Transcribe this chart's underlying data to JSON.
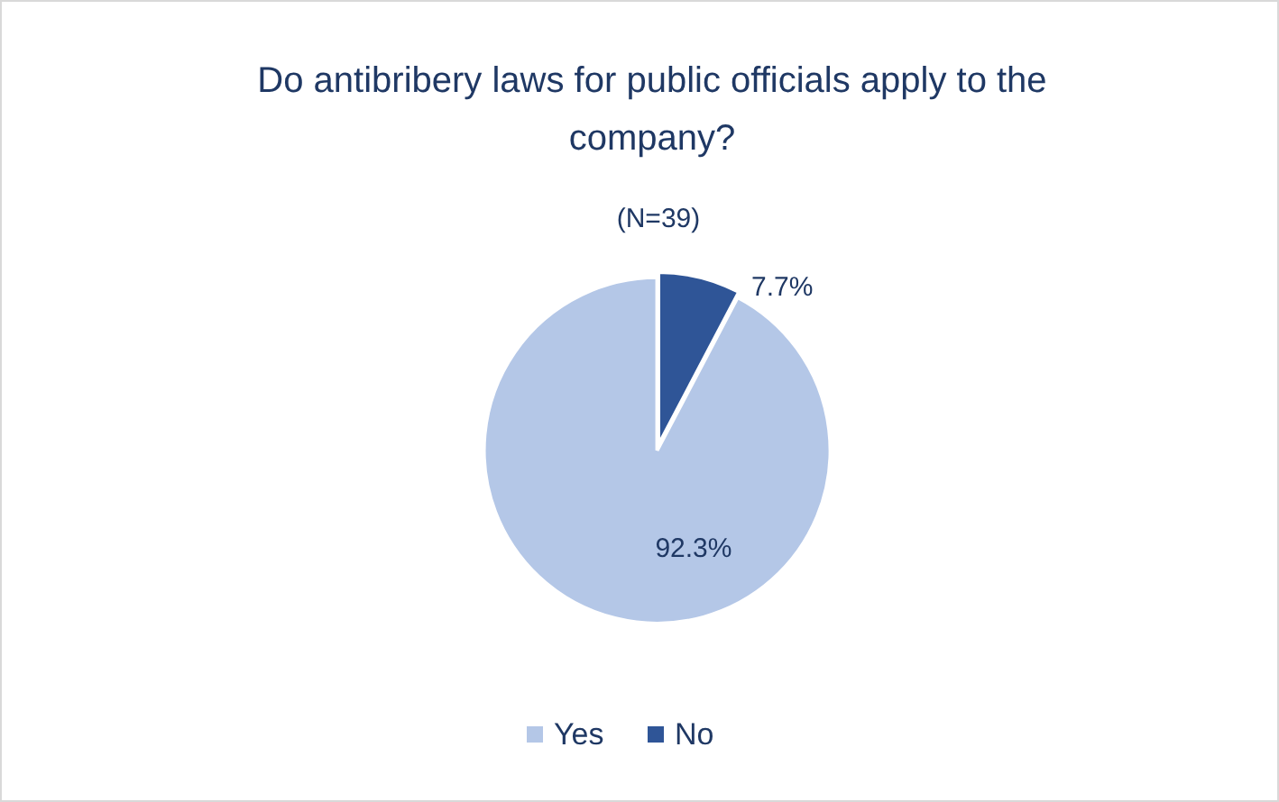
{
  "chart_data": {
    "type": "pie",
    "title": "Do antibribery laws for public officials apply to the company?",
    "subtitle": "(N=39)",
    "categories": [
      "Yes",
      "No"
    ],
    "values": [
      92.3,
      7.7
    ],
    "colors": [
      "#b4c7e7",
      "#2f5597"
    ],
    "value_labels": [
      "92.3%",
      "7.7%"
    ],
    "legend": "bottom"
  }
}
